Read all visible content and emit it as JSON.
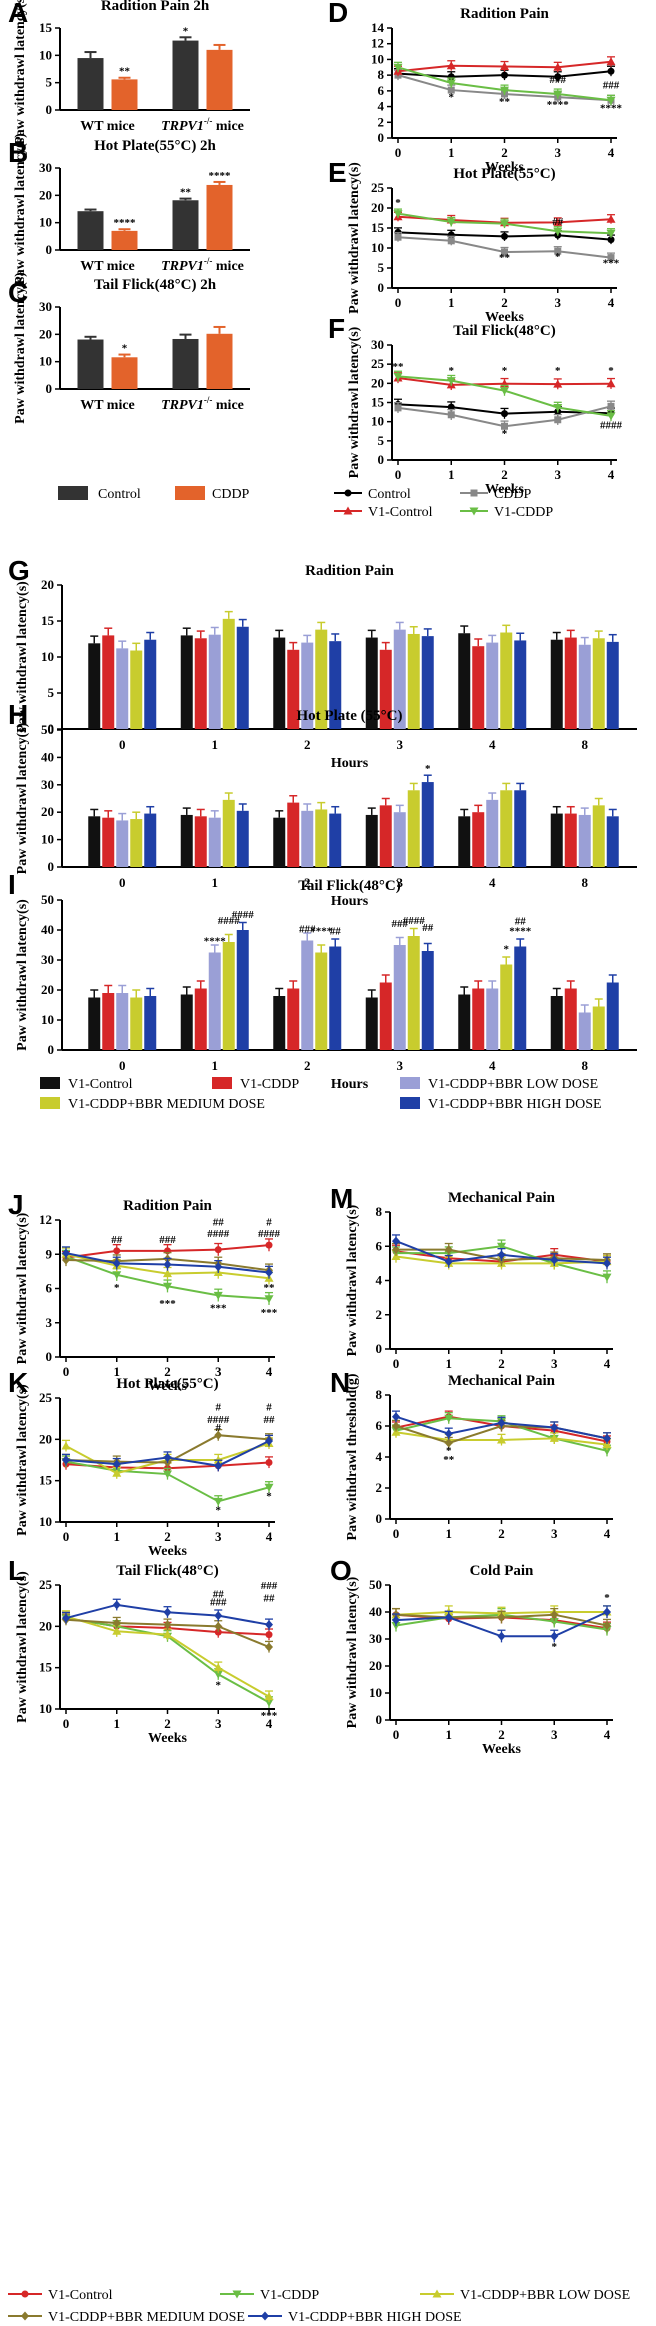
{
  "colors": {
    "control": "#333333",
    "cddp": "#e3632b",
    "line_control": "#000000",
    "line_cddp": "#888888",
    "line_v1control": "#d62728",
    "line_v1cddp": "#6abe45",
    "bar_v1control": "#111111",
    "bar_v1cddp": "#d62728",
    "bar_low": "#9a9fd6",
    "bar_medium": "#c8cc2e",
    "bar_high": "#1f3fa6",
    "l_v1control": "#d62728",
    "l_v1cddp": "#6abe45",
    "l_low": "#c8cc2e",
    "l_medium": "#8a7a2e",
    "l_high": "#1f3fa6"
  },
  "legends": {
    "abc": [
      "Control",
      "CDDP"
    ],
    "def": [
      "Control",
      "CDDP",
      "V1-Control",
      "V1-CDDP"
    ],
    "ghi": [
      "V1-Control",
      "V1-CDDP",
      "V1-CDDP+BBR LOW DOSE",
      "V1-CDDP+BBR MEDIUM DOSE",
      "V1-CDDP+BBR HIGH DOSE"
    ],
    "jo": [
      "V1-Control",
      "V1-CDDP",
      "V1-CDDP+BBR LOW DOSE",
      "V1-CDDP+BBR MEDIUM DOSE",
      "V1-CDDP+BBR HIGH DOSE"
    ]
  },
  "chart_data": [
    {
      "panel": "A",
      "type": "bar",
      "title": "Radition Pain  2h",
      "ylabel": "Paw withdrawl latency(s)",
      "ylim": [
        0,
        15
      ],
      "yticks": [
        0,
        5,
        10,
        15
      ],
      "categories": [
        "WT mice",
        "TRPV1-/- mice"
      ],
      "series": [
        {
          "name": "Control",
          "values": [
            9.5,
            12.7
          ],
          "errors": [
            1.1,
            0.6
          ]
        },
        {
          "name": "CDDP",
          "values": [
            5.6,
            11.0
          ],
          "errors": [
            0.3,
            0.9
          ]
        }
      ],
      "annotations": [
        "*",
        "**"
      ]
    },
    {
      "panel": "B",
      "type": "bar",
      "title": "Hot Plate(55°C) 2h",
      "ylabel": "Paw withdrawl latency(s)",
      "ylim": [
        0,
        30
      ],
      "yticks": [
        0,
        10,
        20,
        30
      ],
      "categories": [
        "WT mice",
        "TRPV1-/- mice"
      ],
      "series": [
        {
          "name": "Control",
          "values": [
            14.2,
            18.2
          ],
          "errors": [
            0.6,
            0.6
          ]
        },
        {
          "name": "CDDP",
          "values": [
            7.0,
            23.8
          ],
          "errors": [
            0.6,
            1.1
          ]
        }
      ],
      "annotations": [
        "****",
        "**",
        "****"
      ]
    },
    {
      "panel": "C",
      "type": "bar",
      "title": "Tail Flick(48°C) 2h",
      "ylabel": "Paw withdrawl latency(s)",
      "ylim": [
        0,
        30
      ],
      "yticks": [
        0,
        10,
        20,
        30
      ],
      "categories": [
        "WT mice",
        "TRPV1-/- mice"
      ],
      "series": [
        {
          "name": "Control",
          "values": [
            18.1,
            18.3
          ],
          "errors": [
            1.0,
            1.6
          ]
        },
        {
          "name": "CDDP",
          "values": [
            11.6,
            20.2
          ],
          "errors": [
            1.0,
            2.5
          ]
        }
      ],
      "annotations": [
        "*"
      ]
    },
    {
      "panel": "D",
      "type": "line",
      "title": "Radition Pain",
      "xlabel": "Weeks",
      "ylabel": "",
      "ylim": [
        0,
        14
      ],
      "yticks": [
        0,
        2,
        4,
        6,
        8,
        10,
        12,
        14
      ],
      "x": [
        0,
        1,
        2,
        3,
        4
      ],
      "series": [
        {
          "name": "Control",
          "values": [
            8.2,
            7.8,
            8.0,
            7.8,
            8.5
          ]
        },
        {
          "name": "CDDP",
          "values": [
            8.0,
            6.1,
            5.6,
            5.2,
            4.8
          ]
        },
        {
          "name": "V1-Control",
          "values": [
            8.5,
            9.2,
            9.1,
            9.0,
            9.7
          ]
        },
        {
          "name": "V1-CDDP",
          "values": [
            9.0,
            7.0,
            6.1,
            5.6,
            4.8
          ]
        }
      ],
      "annotations": [
        "*",
        "**",
        "###",
        "****",
        "###",
        "****"
      ]
    },
    {
      "panel": "E",
      "type": "line",
      "title": "Hot Plate(55°C)",
      "xlabel": "Weeks",
      "ylabel": "Paw withdrawl latency(s)",
      "ylim": [
        0,
        25
      ],
      "yticks": [
        0,
        5,
        10,
        15,
        20,
        25
      ],
      "x": [
        0,
        1,
        2,
        3,
        4
      ],
      "series": [
        {
          "name": "Control",
          "values": [
            13.9,
            13.3,
            12.9,
            13.2,
            12.1
          ]
        },
        {
          "name": "CDDP",
          "values": [
            12.7,
            11.8,
            9.0,
            9.2,
            7.6
          ]
        },
        {
          "name": "V1-Control",
          "values": [
            17.8,
            17.0,
            16.3,
            16.4,
            17.2
          ]
        },
        {
          "name": "V1-CDDP",
          "values": [
            18.6,
            16.5,
            16.1,
            14.2,
            13.7
          ]
        }
      ],
      "annotations": [
        "*",
        "##",
        "**",
        "*",
        "***"
      ]
    },
    {
      "panel": "F",
      "type": "line",
      "title": "Tail Flick(48°C)",
      "xlabel": "Weeks",
      "ylabel": "Paw withdrawl latency(s)",
      "ylim": [
        0,
        30
      ],
      "yticks": [
        0,
        5,
        10,
        15,
        20,
        25,
        30
      ],
      "x": [
        0,
        1,
        2,
        3,
        4
      ],
      "series": [
        {
          "name": "Control",
          "values": [
            14.5,
            13.8,
            12.1,
            12.6,
            12.2
          ]
        },
        {
          "name": "CDDP",
          "values": [
            13.6,
            11.8,
            8.8,
            10.5,
            14.0
          ]
        },
        {
          "name": "V1-Control",
          "values": [
            21.4,
            19.6,
            19.9,
            19.8,
            19.9
          ]
        },
        {
          "name": "V1-CDDP",
          "values": [
            21.8,
            20.7,
            18.1,
            13.7,
            11.5
          ]
        }
      ],
      "annotations": [
        "**",
        "*",
        "*",
        "*",
        "*",
        "*",
        "####"
      ]
    },
    {
      "panel": "G",
      "type": "bar",
      "title": "Radition Pain",
      "xlabel": "Hours",
      "ylabel": "Paw withdrawl latency(s)",
      "ylim": [
        0,
        20
      ],
      "yticks": [
        0,
        5,
        10,
        15,
        20
      ],
      "categories": [
        "0",
        "1",
        "2",
        "3",
        "4",
        "8"
      ],
      "series": [
        {
          "name": "V1-Control",
          "values": [
            11.9,
            13.0,
            12.7,
            12.7,
            13.3,
            12.4
          ]
        },
        {
          "name": "V1-CDDP",
          "values": [
            13.0,
            12.6,
            11.0,
            11.0,
            11.5,
            12.7
          ]
        },
        {
          "name": "V1-CDDP+BBR LOW DOSE",
          "values": [
            11.2,
            13.1,
            12.0,
            13.8,
            12.0,
            11.7
          ]
        },
        {
          "name": "V1-CDDP+BBR MEDIUM DOSE",
          "values": [
            10.9,
            15.3,
            13.8,
            13.2,
            13.4,
            12.6
          ]
        },
        {
          "name": "V1-CDDP+BBR HIGH DOSE",
          "values": [
            12.4,
            14.2,
            12.2,
            12.9,
            12.3,
            12.1
          ]
        }
      ]
    },
    {
      "panel": "H",
      "type": "bar",
      "title": "Hot Plate (55°C)",
      "xlabel": "Hours",
      "ylabel": "Paw withdrawl latency(s)",
      "ylim": [
        0,
        50
      ],
      "yticks": [
        0,
        10,
        20,
        30,
        40,
        50
      ],
      "categories": [
        "0",
        "1",
        "2",
        "3",
        "4",
        "8"
      ],
      "series": [
        {
          "name": "V1-Control",
          "values": [
            18.5,
            19.0,
            18.0,
            19.0,
            18.5,
            19.5
          ]
        },
        {
          "name": "V1-CDDP",
          "values": [
            18.0,
            18.5,
            23.5,
            22.5,
            20.0,
            19.5
          ]
        },
        {
          "name": "V1-CDDP+BBR LOW DOSE",
          "values": [
            17.0,
            18.0,
            20.5,
            20.0,
            24.5,
            19.0
          ]
        },
        {
          "name": "V1-CDDP+BBR MEDIUM DOSE",
          "values": [
            17.5,
            24.5,
            21.0,
            28.0,
            28.0,
            22.5
          ]
        },
        {
          "name": "V1-CDDP+BBR HIGH DOSE",
          "values": [
            19.5,
            20.5,
            19.5,
            31.0,
            28.0,
            18.5
          ]
        }
      ],
      "annotations": [
        "*"
      ]
    },
    {
      "panel": "I",
      "type": "bar",
      "title": "Tail Flick(48°C)",
      "xlabel": "Hours",
      "ylabel": "Paw withdrawl latency(s)",
      "ylim": [
        0,
        50
      ],
      "yticks": [
        0,
        10,
        20,
        30,
        40,
        50
      ],
      "categories": [
        "0",
        "1",
        "2",
        "3",
        "4",
        "8"
      ],
      "series": [
        {
          "name": "V1-Control",
          "values": [
            17.5,
            18.5,
            18.0,
            17.5,
            18.5,
            18.0
          ]
        },
        {
          "name": "V1-CDDP",
          "values": [
            19.0,
            20.5,
            20.5,
            22.5,
            20.5,
            20.5
          ]
        },
        {
          "name": "V1-CDDP+BBR LOW DOSE",
          "values": [
            19.0,
            32.5,
            36.5,
            35.0,
            20.5,
            12.5
          ]
        },
        {
          "name": "V1-CDDP+BBR MEDIUM DOSE",
          "values": [
            17.5,
            36.0,
            32.5,
            38.0,
            28.5,
            14.5
          ]
        },
        {
          "name": "V1-CDDP+BBR HIGH DOSE",
          "values": [
            18.0,
            40.0,
            34.5,
            33.0,
            34.5,
            22.5
          ]
        }
      ],
      "annotations": [
        "###",
        "####",
        "####",
        "###",
        "##",
        "###",
        "####",
        "##",
        "##",
        "****",
        "****",
        "****",
        "****",
        "****",
        "****",
        "*",
        "****"
      ]
    },
    {
      "panel": "J",
      "type": "line",
      "title": "Radition Pain",
      "xlabel": "Weeks",
      "ylabel": "Paw withdrawl latency(s)",
      "ylim": [
        0,
        12
      ],
      "yticks": [
        0,
        3,
        6,
        9,
        12
      ],
      "x": [
        0,
        1,
        2,
        3,
        4
      ],
      "series": [
        {
          "name": "V1-Control",
          "values": [
            8.7,
            9.3,
            9.3,
            9.4,
            9.8
          ]
        },
        {
          "name": "V1-CDDP",
          "values": [
            8.8,
            7.2,
            6.2,
            5.4,
            5.1
          ]
        },
        {
          "name": "V1-CDDP+BBR LOW DOSE",
          "values": [
            9.0,
            8.0,
            7.3,
            7.4,
            6.9
          ]
        },
        {
          "name": "V1-CDDP+BBR MEDIUM DOSE",
          "values": [
            8.5,
            8.4,
            8.6,
            8.2,
            7.6
          ]
        },
        {
          "name": "V1-CDDP+BBR HIGH DOSE",
          "values": [
            9.1,
            8.2,
            8.1,
            7.9,
            7.4
          ]
        }
      ],
      "annotations": [
        "##",
        "###",
        "##",
        "####",
        "#",
        "####",
        "*",
        "***",
        "***",
        "**",
        "***"
      ]
    },
    {
      "panel": "K",
      "type": "line",
      "title": "Hot Plate(55°C)",
      "xlabel": "Weeks",
      "ylabel": "Paw withdrawl latency(s)",
      "ylim": [
        10,
        25
      ],
      "yticks": [
        10,
        15,
        20,
        25
      ],
      "x": [
        0,
        1,
        2,
        3,
        4
      ],
      "series": [
        {
          "name": "V1-Control",
          "values": [
            17.0,
            16.6,
            16.5,
            16.8,
            17.2
          ]
        },
        {
          "name": "V1-CDDP",
          "values": [
            17.3,
            16.2,
            15.8,
            12.5,
            14.2
          ]
        },
        {
          "name": "V1-CDDP+BBR LOW DOSE",
          "values": [
            19.2,
            15.9,
            17.5,
            17.5,
            19.5
          ]
        },
        {
          "name": "V1-CDDP+BBR MEDIUM DOSE",
          "values": [
            17.5,
            17.3,
            17.2,
            20.5,
            20.0
          ]
        },
        {
          "name": "V1-CDDP+BBR HIGH DOSE",
          "values": [
            17.5,
            17.0,
            17.8,
            16.8,
            19.8
          ]
        }
      ],
      "annotations": [
        "#",
        "####",
        "#",
        "#",
        "##",
        "*",
        "*"
      ]
    },
    {
      "panel": "L",
      "type": "line",
      "title": "Tail Flick(48°C)",
      "xlabel": "Weeks",
      "ylabel": "Paw withdrawl latency(s)",
      "ylim": [
        10,
        25
      ],
      "yticks": [
        10,
        15,
        20,
        25
      ],
      "x": [
        0,
        1,
        2,
        3,
        4
      ],
      "series": [
        {
          "name": "V1-Control",
          "values": [
            21.0,
            20.0,
            19.8,
            19.3,
            19.0
          ]
        },
        {
          "name": "V1-CDDP",
          "values": [
            21.0,
            20.0,
            18.8,
            14.2,
            10.8
          ]
        },
        {
          "name": "V1-CDDP+BBR LOW DOSE",
          "values": [
            21.2,
            19.4,
            19.0,
            15.0,
            11.5
          ]
        },
        {
          "name": "V1-CDDP+BBR MEDIUM DOSE",
          "values": [
            20.8,
            20.4,
            20.2,
            20.0,
            17.5
          ]
        },
        {
          "name": "V1-CDDP+BBR HIGH DOSE",
          "values": [
            21.0,
            22.6,
            21.7,
            21.3,
            20.2
          ]
        }
      ],
      "annotations": [
        "##",
        "###",
        "##",
        "###",
        "*",
        "***"
      ]
    },
    {
      "panel": "M",
      "type": "line",
      "title": "Mechanical Pain",
      "xlabel": "",
      "ylabel": "Paw withdrawl latency(s)",
      "ylim": [
        0,
        8
      ],
      "yticks": [
        0,
        2,
        4,
        6,
        8
      ],
      "x": [
        0,
        1,
        2,
        3,
        4
      ],
      "series": [
        {
          "name": "V1-Control",
          "values": [
            5.7,
            5.3,
            5.1,
            5.5,
            5.1
          ]
        },
        {
          "name": "V1-CDDP",
          "values": [
            5.6,
            5.6,
            6.0,
            5.0,
            4.2
          ]
        },
        {
          "name": "V1-CDDP+BBR LOW DOSE",
          "values": [
            5.4,
            5.0,
            5.0,
            5.0,
            5.1
          ]
        },
        {
          "name": "V1-CDDP+BBR MEDIUM DOSE",
          "values": [
            5.8,
            5.8,
            5.2,
            5.3,
            5.2
          ]
        },
        {
          "name": "V1-CDDP+BBR HIGH DOSE",
          "values": [
            6.3,
            5.1,
            5.5,
            5.2,
            5.0
          ]
        }
      ]
    },
    {
      "panel": "N",
      "type": "line",
      "title": "Mechanical Pain",
      "xlabel": "",
      "ylabel": "Paw withdrawl threshold(g)",
      "ylim": [
        0,
        8
      ],
      "yticks": [
        0,
        2,
        4,
        6,
        8
      ],
      "x": [
        0,
        1,
        2,
        3,
        4
      ],
      "series": [
        {
          "name": "V1-Control",
          "values": [
            5.9,
            6.6,
            6.0,
            5.7,
            5.0
          ]
        },
        {
          "name": "V1-CDDP",
          "values": [
            5.7,
            6.5,
            6.3,
            5.2,
            4.4
          ]
        },
        {
          "name": "V1-CDDP+BBR LOW DOSE",
          "values": [
            5.6,
            5.1,
            5.1,
            5.2,
            4.8
          ]
        },
        {
          "name": "V1-CDDP+BBR MEDIUM DOSE",
          "values": [
            6.0,
            4.9,
            6.0,
            5.9,
            5.2
          ]
        },
        {
          "name": "V1-CDDP+BBR HIGH DOSE",
          "values": [
            6.6,
            5.5,
            6.2,
            5.9,
            5.2
          ]
        }
      ],
      "annotations": [
        "*",
        "**"
      ]
    },
    {
      "panel": "O",
      "type": "line",
      "title": "Cold Pain",
      "xlabel": "Weeks",
      "ylabel": "Paw withdrawl latency(s)",
      "ylim": [
        0,
        50
      ],
      "yticks": [
        0,
        10,
        20,
        30,
        40,
        50
      ],
      "x": [
        0,
        1,
        2,
        3,
        4
      ],
      "series": [
        {
          "name": "V1-Control",
          "values": [
            39.0,
            37.5,
            38.0,
            37.0,
            34.0
          ]
        },
        {
          "name": "V1-CDDP",
          "values": [
            35.0,
            38.0,
            39.0,
            36.5,
            33.5
          ]
        },
        {
          "name": "V1-CDDP+BBR LOW DOSE",
          "values": [
            39.0,
            40.0,
            39.5,
            40.0,
            40.0
          ]
        },
        {
          "name": "V1-CDDP+BBR MEDIUM DOSE",
          "values": [
            39.0,
            38.0,
            38.0,
            39.0,
            35.0
          ]
        },
        {
          "name": "V1-CDDP+BBR HIGH DOSE",
          "values": [
            37.0,
            38.0,
            31.0,
            31.0,
            40.0
          ]
        }
      ],
      "annotations": [
        "*",
        "*"
      ]
    }
  ]
}
